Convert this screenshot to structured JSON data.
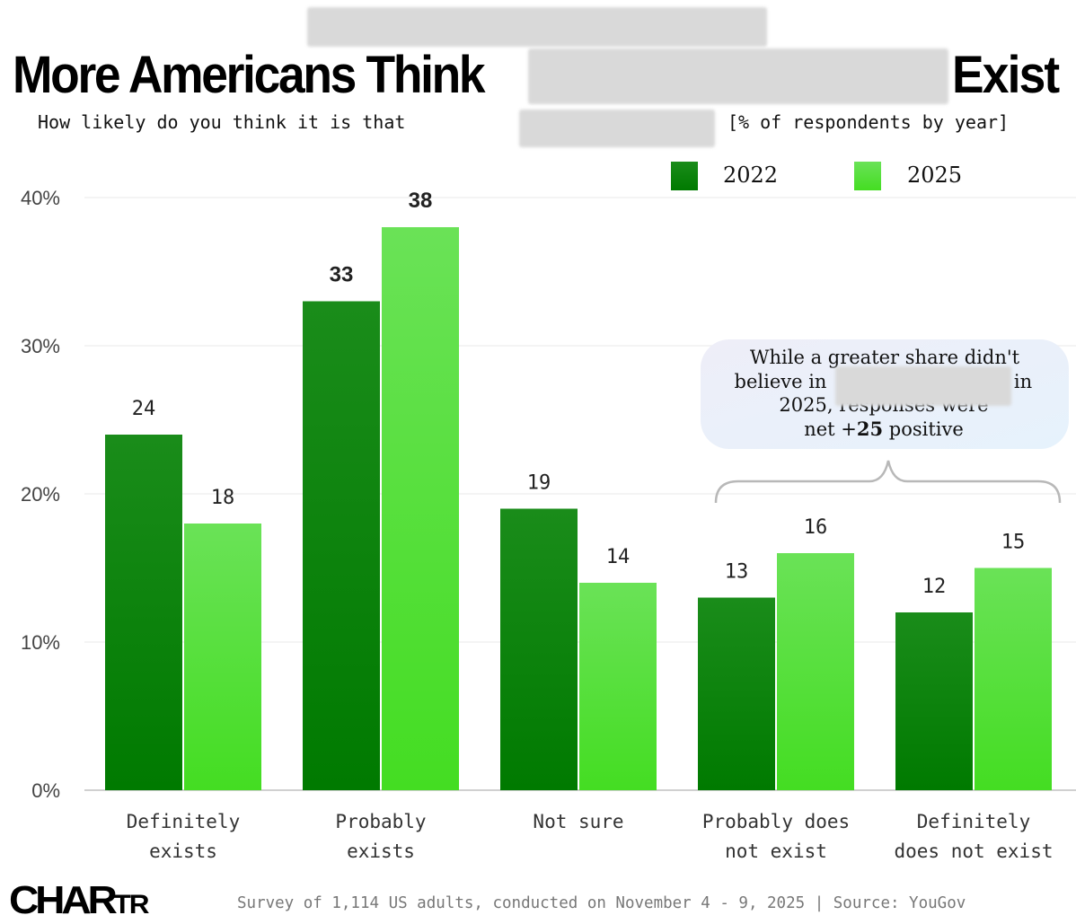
{
  "header": {
    "title_start": "More Americans Think",
    "title_end": "Exist",
    "subtitle_start": "How likely do you think it is that",
    "subtitle_end": "[% of respondents by year]"
  },
  "legend": [
    {
      "label": "2022",
      "color_top": "#1a8c1a",
      "color_bottom": "#007a00"
    },
    {
      "label": "2025",
      "color_top": "#6ae257",
      "color_bottom": "#44dd22"
    }
  ],
  "annotation": {
    "lines": [
      "While a greater share didn't",
      "believe in",
      "in",
      "2025, responses were"
    ],
    "net_prefix": "net +",
    "net_value": "25",
    "net_suffix": " positive"
  },
  "footer": {
    "logo_main": "CHAR",
    "logo_small": "TR",
    "source": "Survey of 1,114 US adults, conducted on November 4 - 9, 2025 | Source: YouGov"
  },
  "chart_data": {
    "type": "bar",
    "title": "More Americans Think [redacted] Exist",
    "subtitle": "How likely do you think it is that [redacted] [% of respondents by year]",
    "xlabel": "",
    "ylabel": "",
    "ylim": [
      0,
      40
    ],
    "yticks": [
      0,
      10,
      20,
      30,
      40
    ],
    "ytick_labels": [
      "0%",
      "10%",
      "20%",
      "30%",
      "40%"
    ],
    "grid": true,
    "legend_position": "top-right",
    "categories": [
      [
        "Definitely",
        "exists"
      ],
      [
        "Probably",
        "exists"
      ],
      [
        "Not sure"
      ],
      [
        "Probably does",
        "not exist"
      ],
      [
        "Definitely",
        "does not exist"
      ]
    ],
    "series": [
      {
        "name": "2022",
        "values": [
          24,
          33,
          19,
          13,
          12
        ]
      },
      {
        "name": "2025",
        "values": [
          18,
          38,
          14,
          16,
          15
        ]
      }
    ],
    "bold_labels_category": 1
  }
}
